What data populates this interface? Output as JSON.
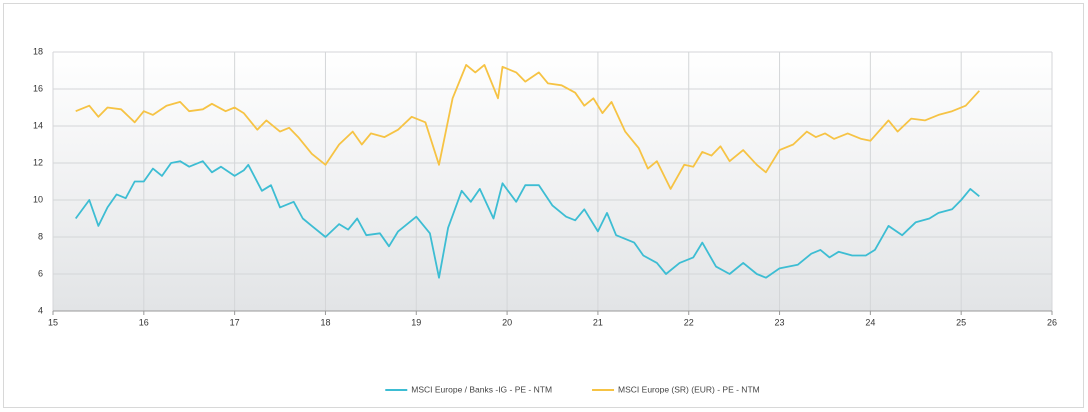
{
  "chart_data": {
    "type": "line",
    "xlim": [
      15,
      26
    ],
    "xticks": [
      15,
      16,
      17,
      18,
      19,
      20,
      21,
      22,
      23,
      24,
      25,
      26
    ],
    "ylim": [
      4,
      18
    ],
    "yticks": [
      4,
      6,
      8,
      10,
      12,
      14,
      16,
      18
    ],
    "grid": true,
    "legend": "bottom",
    "series": [
      {
        "name": "MSCI Europe / Banks -IG - PE - NTM",
        "color": "#3dbdd3",
        "x": [
          15.25,
          15.4,
          15.5,
          15.6,
          15.7,
          15.8,
          15.9,
          16.0,
          16.1,
          16.2,
          16.3,
          16.4,
          16.5,
          16.65,
          16.75,
          16.85,
          17.0,
          17.1,
          17.15,
          17.3,
          17.4,
          17.5,
          17.65,
          17.75,
          17.85,
          18.0,
          18.15,
          18.25,
          18.35,
          18.45,
          18.6,
          18.7,
          18.8,
          19.0,
          19.15,
          19.25,
          19.35,
          19.5,
          19.6,
          19.7,
          19.85,
          19.95,
          20.1,
          20.2,
          20.35,
          20.5,
          20.65,
          20.75,
          20.85,
          21.0,
          21.1,
          21.2,
          21.4,
          21.5,
          21.65,
          21.75,
          21.9,
          22.05,
          22.15,
          22.3,
          22.45,
          22.6,
          22.75,
          22.85,
          23.0,
          23.2,
          23.35,
          23.45,
          23.55,
          23.65,
          23.8,
          23.95,
          24.05,
          24.2,
          24.35,
          24.5,
          24.65,
          24.75,
          24.9,
          25.0,
          25.1,
          25.2
        ],
        "values": [
          9.0,
          10.0,
          8.6,
          9.6,
          10.3,
          10.1,
          11.0,
          11.0,
          11.7,
          11.3,
          12.0,
          12.1,
          11.8,
          12.1,
          11.5,
          11.8,
          11.3,
          11.6,
          11.9,
          10.5,
          10.8,
          9.6,
          9.9,
          9.0,
          8.6,
          8.0,
          8.7,
          8.4,
          9.0,
          8.1,
          8.2,
          7.5,
          8.3,
          9.1,
          8.2,
          5.8,
          8.5,
          10.5,
          9.9,
          10.6,
          9.0,
          10.9,
          9.9,
          10.8,
          10.8,
          9.7,
          9.1,
          8.9,
          9.5,
          8.3,
          9.3,
          8.1,
          7.7,
          7.0,
          6.6,
          6.0,
          6.6,
          6.9,
          7.7,
          6.4,
          6.0,
          6.6,
          6.0,
          5.8,
          6.3,
          6.5,
          7.1,
          7.3,
          6.9,
          7.2,
          7.0,
          7.0,
          7.3,
          8.6,
          8.1,
          8.8,
          9.0,
          9.3,
          9.5,
          10.0,
          10.6,
          10.2
        ]
      },
      {
        "name": "MSCI Europe (SR) (EUR) - PE - NTM",
        "color": "#f6c344",
        "x": [
          15.25,
          15.4,
          15.5,
          15.6,
          15.75,
          15.9,
          16.0,
          16.1,
          16.25,
          16.4,
          16.5,
          16.65,
          16.75,
          16.9,
          17.0,
          17.1,
          17.25,
          17.35,
          17.5,
          17.6,
          17.7,
          17.85,
          18.0,
          18.15,
          18.3,
          18.4,
          18.5,
          18.65,
          18.8,
          18.95,
          19.1,
          19.25,
          19.4,
          19.55,
          19.65,
          19.75,
          19.9,
          19.95,
          20.1,
          20.2,
          20.35,
          20.45,
          20.6,
          20.75,
          20.85,
          20.95,
          21.05,
          21.15,
          21.3,
          21.45,
          21.55,
          21.65,
          21.8,
          21.95,
          22.05,
          22.15,
          22.25,
          22.35,
          22.45,
          22.6,
          22.75,
          22.85,
          23.0,
          23.15,
          23.3,
          23.4,
          23.5,
          23.6,
          23.75,
          23.9,
          24.0,
          24.2,
          24.3,
          24.45,
          24.6,
          24.75,
          24.9,
          25.05,
          25.2
        ],
        "values": [
          14.8,
          15.1,
          14.5,
          15.0,
          14.9,
          14.2,
          14.8,
          14.6,
          15.1,
          15.3,
          14.8,
          14.9,
          15.2,
          14.8,
          15.0,
          14.7,
          13.8,
          14.3,
          13.7,
          13.9,
          13.4,
          12.5,
          11.9,
          13.0,
          13.7,
          13.0,
          13.6,
          13.4,
          13.8,
          14.5,
          14.2,
          11.9,
          15.5,
          17.3,
          16.9,
          17.3,
          15.5,
          17.2,
          16.9,
          16.4,
          16.9,
          16.3,
          16.2,
          15.8,
          15.1,
          15.5,
          14.7,
          15.3,
          13.7,
          12.8,
          11.7,
          12.1,
          10.6,
          11.9,
          11.8,
          12.6,
          12.4,
          12.9,
          12.1,
          12.7,
          11.9,
          11.5,
          12.7,
          13.0,
          13.7,
          13.4,
          13.6,
          13.3,
          13.6,
          13.3,
          13.2,
          14.3,
          13.7,
          14.4,
          14.3,
          14.6,
          14.8,
          15.1,
          15.9
        ]
      }
    ]
  }
}
